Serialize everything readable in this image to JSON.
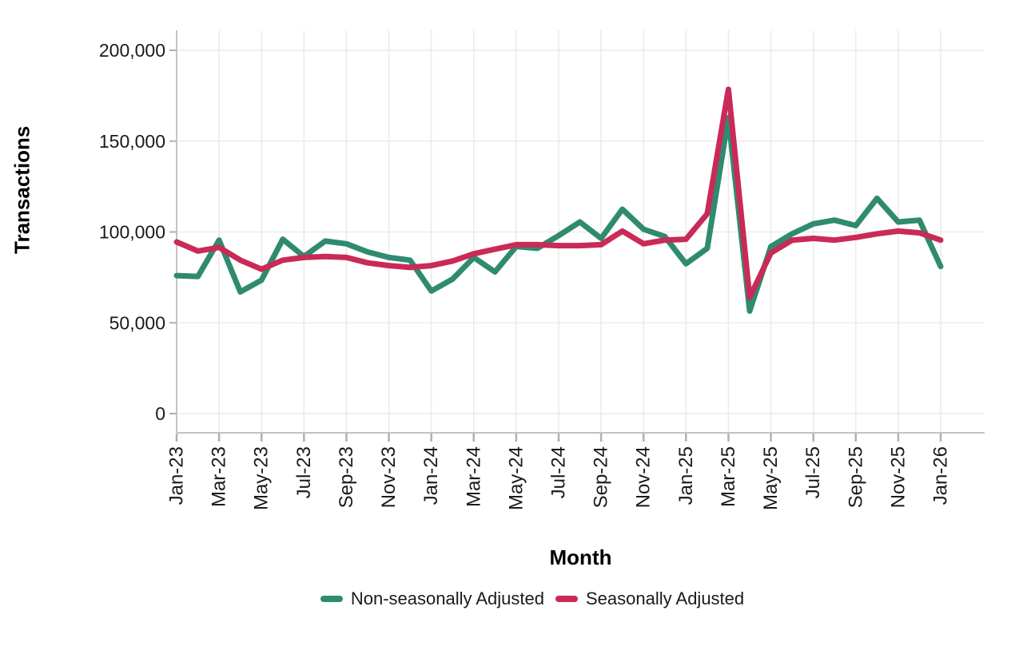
{
  "chart_data": {
    "type": "line",
    "title": "",
    "xlabel": "Month",
    "ylabel": "Transactions",
    "ylim": [
      0,
      210000
    ],
    "grid": true,
    "legend_position": "bottom",
    "yticks": [
      0,
      50000,
      100000,
      150000,
      200000
    ],
    "ytick_labels": [
      "0",
      "50,000",
      "100,000",
      "150,000",
      "200,000"
    ],
    "x_tick_labels": [
      "Jan-23",
      "Mar-23",
      "May-23",
      "Jul-23",
      "Sep-23",
      "Nov-23",
      "Jan-24",
      "Mar-24",
      "May-24",
      "Jul-24",
      "Sep-24",
      "Nov-24",
      "Jan-25",
      "Mar-25",
      "May-25",
      "Jul-25",
      "Sep-25",
      "Nov-25",
      "Jan-26"
    ],
    "categories": [
      "Jan-23",
      "Feb-23",
      "Mar-23",
      "Apr-23",
      "May-23",
      "Jun-23",
      "Jul-23",
      "Aug-23",
      "Sep-23",
      "Oct-23",
      "Nov-23",
      "Dec-23",
      "Jan-24",
      "Feb-24",
      "Mar-24",
      "Apr-24",
      "May-24",
      "Jun-24",
      "Jul-24",
      "Aug-24",
      "Sep-24",
      "Oct-24",
      "Nov-24",
      "Dec-24",
      "Jan-25",
      "Feb-25",
      "Mar-25",
      "Apr-25",
      "May-25",
      "Jun-25",
      "Jul-25",
      "Aug-25",
      "Sep-25",
      "Oct-25",
      "Nov-25",
      "Dec-25",
      "Jan-26"
    ],
    "series": [
      {
        "name": "Non-seasonally Adjusted",
        "color": "#2f8b6f",
        "values": [
          76000,
          75500,
          95500,
          67000,
          73500,
          96000,
          86500,
          95000,
          93500,
          89000,
          86000,
          84500,
          67500,
          74000,
          86000,
          78000,
          92000,
          91000,
          98000,
          105500,
          96500,
          112500,
          101500,
          97500,
          82500,
          91000,
          163000,
          56500,
          92000,
          99000,
          104500,
          106500,
          103500,
          118500,
          105500,
          106500,
          81000
        ]
      },
      {
        "name": "Seasonally Adjusted",
        "color": "#c92a57",
        "values": [
          94500,
          89500,
          91500,
          84500,
          79500,
          84500,
          86000,
          86500,
          86000,
          83000,
          81500,
          80500,
          81500,
          84000,
          88000,
          90500,
          93000,
          93000,
          92500,
          92500,
          93000,
          100500,
          93500,
          95500,
          96000,
          110000,
          178500,
          64000,
          88500,
          95500,
          96500,
          95500,
          97000,
          99000,
          100500,
          99500,
          95500
        ]
      }
    ],
    "colors": {
      "gridline": "#ebebeb",
      "axis_line": "#c2c2c2",
      "tick_mark": "#b0b0b0",
      "tick_text": "#1a1a1a"
    }
  }
}
